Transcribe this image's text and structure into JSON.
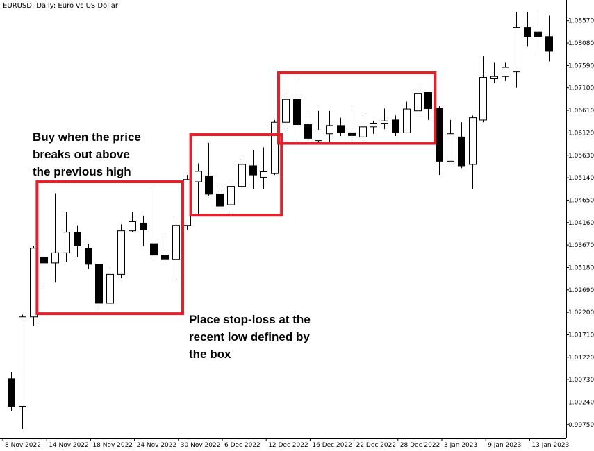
{
  "chart_data": {
    "type": "candlestick",
    "title": "EURUSD, Daily:  Euro vs US Dollar",
    "ylim": [
      0.9946,
      1.0902
    ],
    "y_ticks": [
      "1.08570",
      "1.08080",
      "1.07590",
      "1.07100",
      "1.06610",
      "1.06120",
      "1.05630",
      "1.05140",
      "1.04650",
      "1.04160",
      "1.03670",
      "1.03180",
      "1.02690",
      "1.02200",
      "1.01710",
      "1.01220",
      "1.00730",
      "1.00240",
      "0.99750"
    ],
    "x_ticks": [
      {
        "label": "8 Nov 2022",
        "index": 0
      },
      {
        "label": "14 Nov 2022",
        "index": 4
      },
      {
        "label": "18 Nov 2022",
        "index": 8
      },
      {
        "label": "24 Nov 2022",
        "index": 12
      },
      {
        "label": "30 Nov 2022",
        "index": 16
      },
      {
        "label": "6 Dec 2022",
        "index": 20
      },
      {
        "label": "12 Dec 2022",
        "index": 24
      },
      {
        "label": "16 Dec 2022",
        "index": 28
      },
      {
        "label": "22 Dec 2022",
        "index": 32
      },
      {
        "label": "28 Dec 2022",
        "index": 36
      },
      {
        "label": "3 Jan 2023",
        "index": 40
      },
      {
        "label": "9 Jan 2023",
        "index": 44
      },
      {
        "label": "13 Jan 2023",
        "index": 48
      }
    ],
    "candles": [
      {
        "o": 1.0075,
        "h": 1.009,
        "l": 1.0005,
        "c": 1.0015
      },
      {
        "o": 1.0015,
        "h": 1.0215,
        "l": 0.9965,
        "c": 1.021
      },
      {
        "o": 1.021,
        "h": 1.0365,
        "l": 1.019,
        "c": 1.036
      },
      {
        "o": 1.034,
        "h": 1.0355,
        "l": 1.0275,
        "c": 1.0328
      },
      {
        "o": 1.0328,
        "h": 1.048,
        "l": 1.0285,
        "c": 1.035
      },
      {
        "o": 1.035,
        "h": 1.044,
        "l": 1.033,
        "c": 1.0395
      },
      {
        "o": 1.0395,
        "h": 1.041,
        "l": 1.034,
        "c": 1.0365
      },
      {
        "o": 1.036,
        "h": 1.037,
        "l": 1.0315,
        "c": 1.0325
      },
      {
        "o": 1.0325,
        "h": 1.0325,
        "l": 1.0225,
        "c": 1.024
      },
      {
        "o": 1.024,
        "h": 1.031,
        "l": 1.024,
        "c": 1.0303
      },
      {
        "o": 1.0303,
        "h": 1.0412,
        "l": 1.0295,
        "c": 1.0398
      },
      {
        "o": 1.0398,
        "h": 1.044,
        "l": 1.0395,
        "c": 1.0418
      },
      {
        "o": 1.0415,
        "h": 1.043,
        "l": 1.0365,
        "c": 1.04
      },
      {
        "o": 1.037,
        "h": 1.05,
        "l": 1.034,
        "c": 1.0345
      },
      {
        "o": 1.0345,
        "h": 1.0385,
        "l": 1.033,
        "c": 1.0335
      },
      {
        "o": 1.0335,
        "h": 1.042,
        "l": 1.029,
        "c": 1.041
      },
      {
        "o": 1.041,
        "h": 1.052,
        "l": 1.04,
        "c": 1.051
      },
      {
        "o": 1.0505,
        "h": 1.0545,
        "l": 1.043,
        "c": 1.0528
      },
      {
        "o": 1.0518,
        "h": 1.059,
        "l": 1.0475,
        "c": 1.0478
      },
      {
        "o": 1.0478,
        "h": 1.0495,
        "l": 1.045,
        "c": 1.0452
      },
      {
        "o": 1.0455,
        "h": 1.051,
        "l": 1.044,
        "c": 1.0495
      },
      {
        "o": 1.0495,
        "h": 1.0555,
        "l": 1.049,
        "c": 1.0543
      },
      {
        "o": 1.054,
        "h": 1.0575,
        "l": 1.049,
        "c": 1.052
      },
      {
        "o": 1.0515,
        "h": 1.058,
        "l": 1.049,
        "c": 1.0527
      },
      {
        "o": 1.0523,
        "h": 1.064,
        "l": 1.052,
        "c": 1.0635
      },
      {
        "o": 1.0635,
        "h": 1.07,
        "l": 1.062,
        "c": 1.0685
      },
      {
        "o": 1.0685,
        "h": 1.073,
        "l": 1.059,
        "c": 1.063
      },
      {
        "o": 1.063,
        "h": 1.065,
        "l": 1.0595,
        "c": 1.06
      },
      {
        "o": 1.0595,
        "h": 1.066,
        "l": 1.059,
        "c": 1.0618
      },
      {
        "o": 1.061,
        "h": 1.066,
        "l": 1.059,
        "c": 1.0628
      },
      {
        "o": 1.0628,
        "h": 1.0645,
        "l": 1.0605,
        "c": 1.0612
      },
      {
        "o": 1.0612,
        "h": 1.066,
        "l": 1.059,
        "c": 1.0606
      },
      {
        "o": 1.0603,
        "h": 1.0655,
        "l": 1.0598,
        "c": 1.0625
      },
      {
        "o": 1.0625,
        "h": 1.0638,
        "l": 1.061,
        "c": 1.0633
      },
      {
        "o": 1.0633,
        "h": 1.0665,
        "l": 1.062,
        "c": 1.0638
      },
      {
        "o": 1.064,
        "h": 1.065,
        "l": 1.0605,
        "c": 1.0612
      },
      {
        "o": 1.0612,
        "h": 1.068,
        "l": 1.0612,
        "c": 1.0664
      },
      {
        "o": 1.066,
        "h": 1.0715,
        "l": 1.065,
        "c": 1.0698
      },
      {
        "o": 1.07,
        "h": 1.07,
        "l": 1.064,
        "c": 1.0665
      },
      {
        "o": 1.0665,
        "h": 1.067,
        "l": 1.052,
        "c": 1.055
      },
      {
        "o": 1.055,
        "h": 1.064,
        "l": 1.055,
        "c": 1.061
      },
      {
        "o": 1.0603,
        "h": 1.0635,
        "l": 1.0535,
        "c": 1.054
      },
      {
        "o": 1.0543,
        "h": 1.065,
        "l": 1.049,
        "c": 1.0645
      },
      {
        "o": 1.064,
        "h": 1.078,
        "l": 1.0635,
        "c": 1.0733
      },
      {
        "o": 1.073,
        "h": 1.0765,
        "l": 1.072,
        "c": 1.0735
      },
      {
        "o": 1.0735,
        "h": 1.0765,
        "l": 1.0725,
        "c": 1.0755
      },
      {
        "o": 1.0745,
        "h": 1.0876,
        "l": 1.071,
        "c": 1.0842
      },
      {
        "o": 1.0842,
        "h": 1.0876,
        "l": 1.08,
        "c": 1.0822
      },
      {
        "o": 1.0832,
        "h": 1.0878,
        "l": 1.079,
        "c": 1.0822
      },
      {
        "o": 1.0822,
        "h": 1.0868,
        "l": 1.0768,
        "c": 1.079
      }
    ],
    "boxes": [
      {
        "from": 3,
        "to": 15,
        "top": 1.0505,
        "bottom": 1.0217
      },
      {
        "from": 17,
        "to": 24,
        "top": 1.0608,
        "bottom": 1.0432
      },
      {
        "from": 25,
        "to": 38,
        "top": 1.0743,
        "bottom": 1.0589
      }
    ],
    "box_color": "#e0202b",
    "bull_color": "#ffffff",
    "bear_color": "#000000",
    "annotations": [
      {
        "id": "buy",
        "text": "Buy when the price\nbreaks out above\nthe previous high"
      },
      {
        "id": "stop",
        "text": "Place stop-loss at the\nrecent low defined by\nthe box"
      }
    ]
  }
}
